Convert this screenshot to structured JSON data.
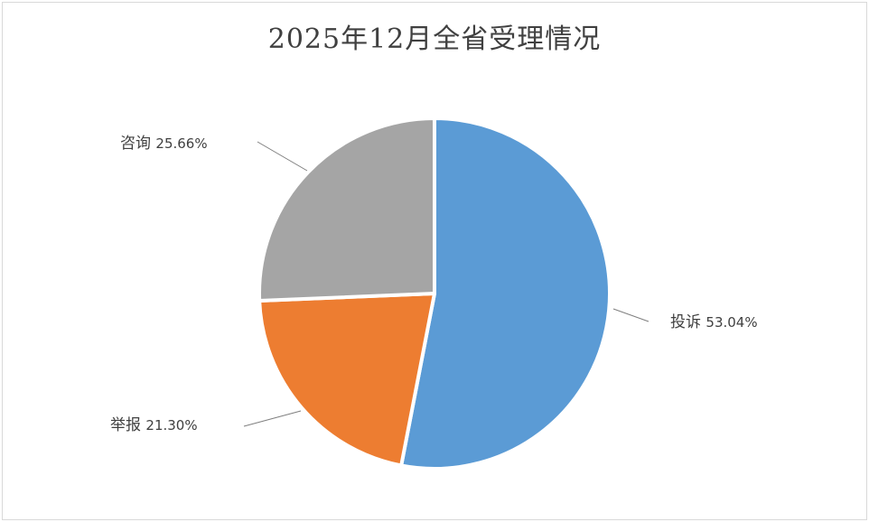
{
  "chart_data": {
    "type": "pie",
    "title": "2025年12月全省受理情况",
    "slices": [
      {
        "name": "投诉",
        "value": 53.04,
        "label": "53.04%",
        "color": "#5b9bd5"
      },
      {
        "name": "举报",
        "value": 21.3,
        "label": "21.30%",
        "color": "#ed7d31"
      },
      {
        "name": "咨询",
        "value": 25.66,
        "label": "25.66%",
        "color": "#a5a5a5"
      }
    ],
    "legend": "none",
    "label_position": "outside with leader lines"
  }
}
